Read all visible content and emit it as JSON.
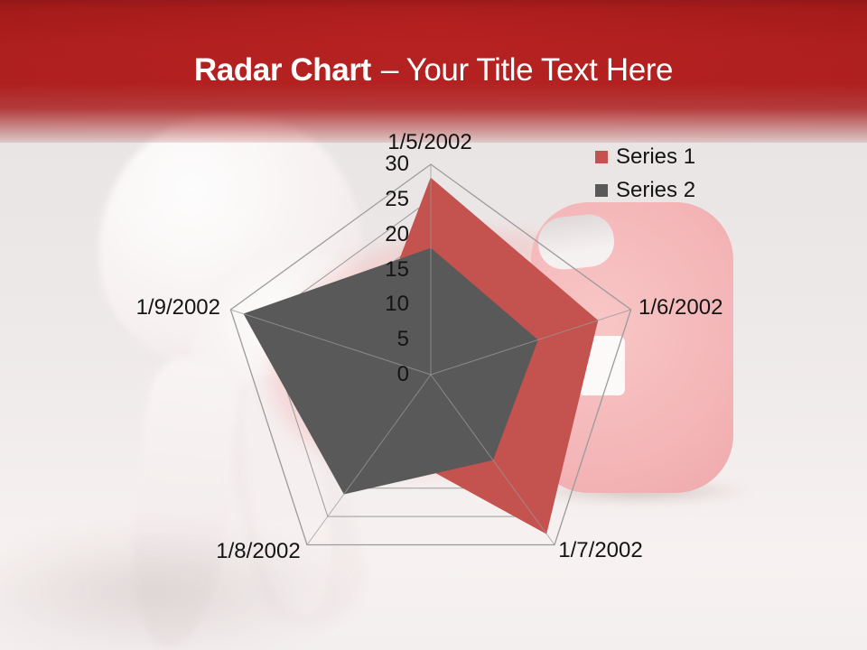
{
  "slide": {
    "title_bold": "Radar Chart",
    "title_rest": "– Your Title Text Here",
    "banner_color": "#B01E1E",
    "background_images": [
      "tooth",
      "first-aid-kit"
    ]
  },
  "chart_data": {
    "type": "radar",
    "title": "",
    "categories": [
      "1/5/2002",
      "1/6/2002",
      "1/7/2002",
      "1/8/2002",
      "1/9/2002"
    ],
    "series": [
      {
        "name": "Series 1",
        "color": "#C4524F",
        "values": [
          28,
          25,
          28,
          12,
          10
        ]
      },
      {
        "name": "Series 2",
        "color": "#595959",
        "values": [
          18,
          16,
          15,
          21,
          28
        ]
      }
    ],
    "radial_axis": {
      "min": 0,
      "max": 30,
      "step": 5,
      "tick_labels": [
        30,
        25,
        20,
        15,
        10,
        5,
        0
      ]
    },
    "grid": true,
    "grid_color": "#9B9B9B",
    "spoke_color": "#9A9A9A",
    "legend_position": "top-right"
  }
}
